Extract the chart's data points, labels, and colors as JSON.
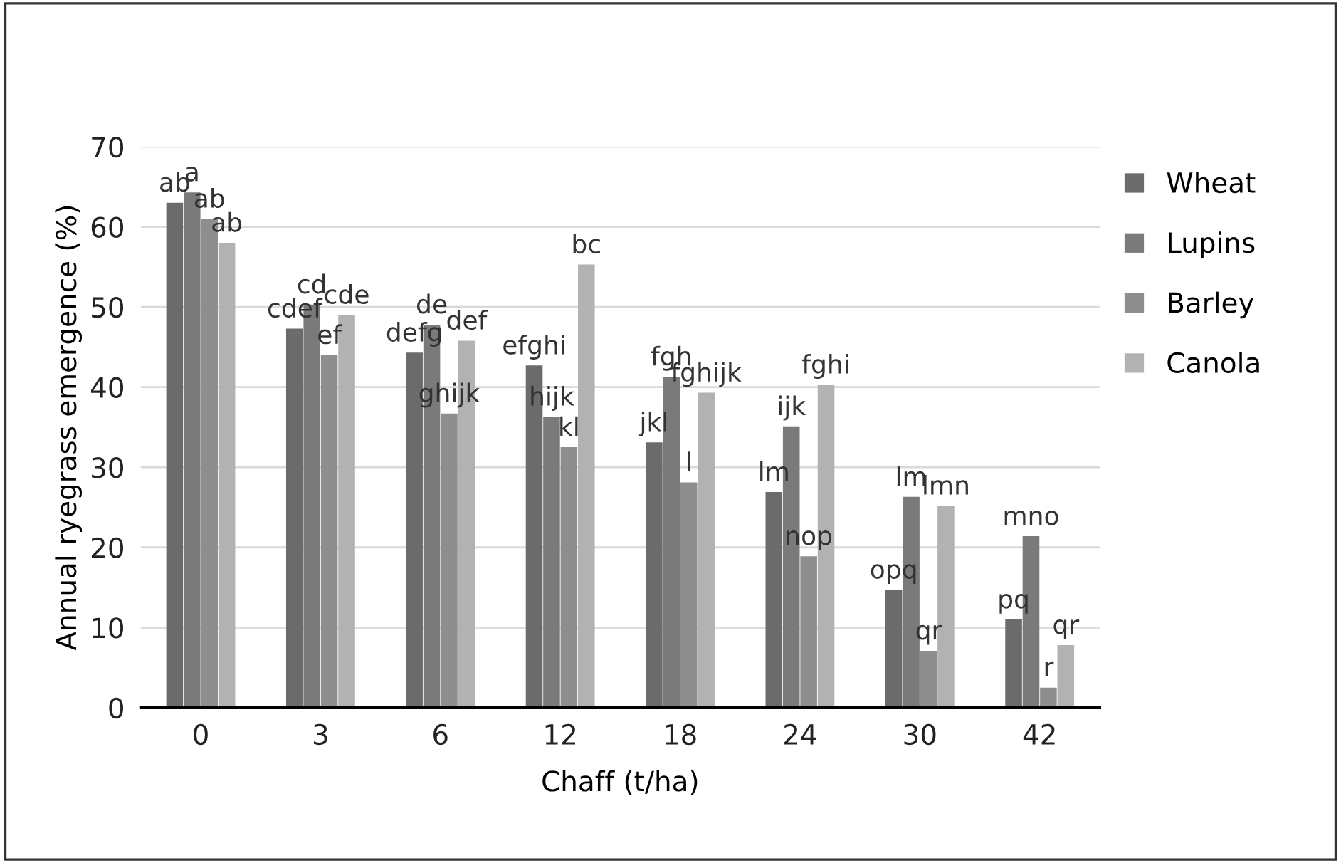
{
  "chart_data": {
    "type": "bar",
    "xlabel": "Chaff (t/ha)",
    "ylabel": "Annual ryegrass emergence (%)",
    "categories": [
      "0",
      "3",
      "6",
      "12",
      "18",
      "24",
      "30",
      "42"
    ],
    "series": [
      {
        "name": "Wheat",
        "color": "#6b6b6b",
        "values": [
          63,
          47.3,
          44.3,
          42.7,
          33.1,
          26.9,
          14.7,
          11
        ]
      },
      {
        "name": "Lupins",
        "color": "#7a7a7a",
        "values": [
          64.3,
          50.3,
          47.8,
          36.3,
          41.3,
          35.1,
          26.3,
          21.4
        ]
      },
      {
        "name": "Barley",
        "color": "#8e8e8e",
        "values": [
          61,
          44,
          36.7,
          32.5,
          28.1,
          18.9,
          7.1,
          2.5
        ]
      },
      {
        "name": "Canola",
        "color": "#b2b2b2",
        "values": [
          58,
          49,
          45.8,
          55.3,
          39.3,
          40.3,
          25.2,
          7.8
        ]
      }
    ],
    "ylim": [
      0,
      70
    ],
    "yticks": [
      0,
      10,
      20,
      30,
      40,
      50,
      60,
      70
    ],
    "grid": "y",
    "legend": "top right",
    "annotations": [
      "ab",
      "a",
      "ab",
      "ab",
      "cdef",
      "cd",
      "ef",
      "cde",
      "defg",
      "de",
      "ghijk",
      "def",
      "efghi",
      "hijk",
      "kl",
      "bc",
      "jkl",
      "fgh",
      "l",
      "fghijk",
      "lm",
      "ijk",
      "nop",
      "fghi",
      "opq",
      "lm",
      "qr",
      "lmn",
      "pq",
      "mno",
      "r",
      "qr"
    ]
  }
}
